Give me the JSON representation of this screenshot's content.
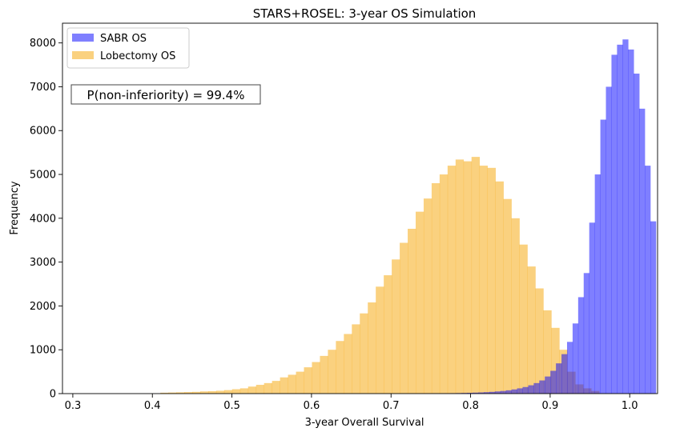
{
  "chart_data": {
    "type": "histogram",
    "title": "STARS+ROSEL: 3-year OS Simulation",
    "xlabel": "3-year Overall Survival",
    "ylabel": "Frequency",
    "xlim": [
      0.287,
      1.035
    ],
    "ylim": [
      0,
      8450
    ],
    "xticks": [
      0.3,
      0.4,
      0.5,
      0.6,
      0.7,
      0.8,
      0.9,
      1.0
    ],
    "xtick_labels": [
      "0.3",
      "0.4",
      "0.5",
      "0.6",
      "0.7",
      "0.8",
      "0.9",
      "1.0"
    ],
    "yticks": [
      0,
      1000,
      2000,
      3000,
      4000,
      5000,
      6000,
      7000,
      8000
    ],
    "ytick_labels": [
      "0",
      "1000",
      "2000",
      "3000",
      "4000",
      "5000",
      "6000",
      "7000",
      "8000"
    ],
    "annotation": "P(non-inferiority) = 99.4%",
    "legend_position": "top-left",
    "series": [
      {
        "name": "SABR OS",
        "color": "#0000ff",
        "alpha": 0.5,
        "bin_start": 0.3,
        "bin_width": 0.00698,
        "values": [
          0,
          0,
          0,
          0,
          0,
          0,
          0,
          0,
          0,
          0,
          0,
          0,
          0,
          0,
          0,
          0,
          0,
          0,
          0,
          0,
          0,
          0,
          0,
          0,
          0,
          0,
          0,
          0,
          0,
          0,
          0,
          0,
          0,
          0,
          0,
          0,
          0,
          0,
          0,
          0,
          0,
          0,
          0,
          0,
          0,
          0,
          0,
          0,
          0,
          0,
          0,
          0,
          0,
          0,
          0,
          0,
          0,
          0,
          0,
          0,
          1,
          1,
          2,
          3,
          3,
          5,
          6,
          8,
          10,
          12,
          15,
          18,
          22,
          27,
          33,
          40,
          50,
          60,
          75,
          95,
          120,
          150,
          190,
          240,
          300,
          390,
          520,
          690,
          900,
          1180,
          1600,
          2200,
          2750,
          3900,
          5000,
          6250,
          7000,
          7730,
          7960,
          8080,
          7850,
          7300,
          6500,
          5200,
          3930
        ]
      },
      {
        "name": "Lobectomy OS",
        "color": "#f5a300",
        "alpha": 0.5,
        "bin_start": 0.41,
        "bin_width": 0.01003,
        "values": [
          20,
          25,
          30,
          35,
          40,
          50,
          55,
          65,
          80,
          100,
          120,
          160,
          200,
          240,
          290,
          370,
          430,
          500,
          600,
          720,
          860,
          1000,
          1200,
          1360,
          1580,
          1830,
          2080,
          2440,
          2700,
          3060,
          3440,
          3760,
          4150,
          4450,
          4800,
          5000,
          5200,
          5340,
          5300,
          5400,
          5200,
          5150,
          4840,
          4440,
          4000,
          3400,
          2900,
          2400,
          1900,
          1500,
          1000,
          500,
          210,
          120,
          60
        ]
      }
    ]
  }
}
